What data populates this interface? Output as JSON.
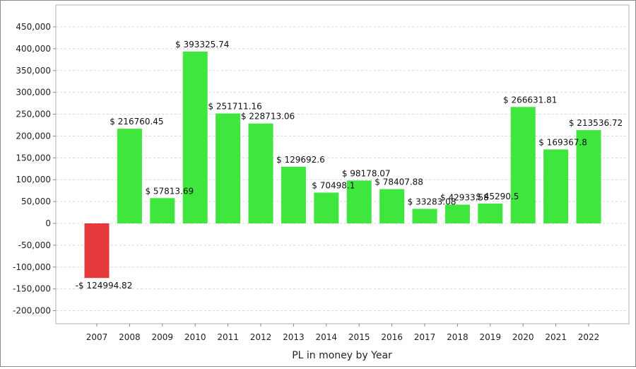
{
  "chart_data": {
    "type": "bar",
    "title": "",
    "xlabel": "PL in money by Year",
    "ylabel": "",
    "ylim": [
      -240000,
      470000
    ],
    "yticks": [
      -200000,
      -150000,
      -100000,
      -50000,
      0,
      50000,
      100000,
      150000,
      200000,
      250000,
      300000,
      350000,
      400000,
      450000
    ],
    "ytick_labels": [
      "-200,000",
      "-150,000",
      "-100,000",
      "-50,000",
      "0",
      "50,000",
      "100,000",
      "150,000",
      "200,000",
      "250,000",
      "300,000",
      "350,000",
      "400,000",
      "450,000"
    ],
    "grid": true,
    "positive_color": "#3ee63e",
    "negative_color": "#e5393b",
    "categories": [
      "2007",
      "2008",
      "2009",
      "2010",
      "2011",
      "2012",
      "2013",
      "2014",
      "2015",
      "2016",
      "2017",
      "2018",
      "2019",
      "2020",
      "2021",
      "2022"
    ],
    "values": [
      -124994.82,
      216760.45,
      57813.69,
      393325.74,
      251711.16,
      228713.06,
      129692.6,
      70498.1,
      98178.07,
      78407.88,
      33283.08,
      42933.58,
      45290.5,
      266631.81,
      169367.8,
      213536.72
    ],
    "data_labels": [
      "-$ 124994.82",
      "$ 216760.45",
      "$ 57813.69",
      "$ 393325.74",
      "$ 251711.16",
      "$ 228713.06",
      "$ 129692.6",
      "$ 70498.1",
      "$ 98178.07",
      "$ 78407.88",
      "$ 33283.08",
      "$ 42933.58",
      "$ 45290.5",
      "$ 266631.81",
      "$ 169367.8",
      "$ 213536.72"
    ]
  }
}
